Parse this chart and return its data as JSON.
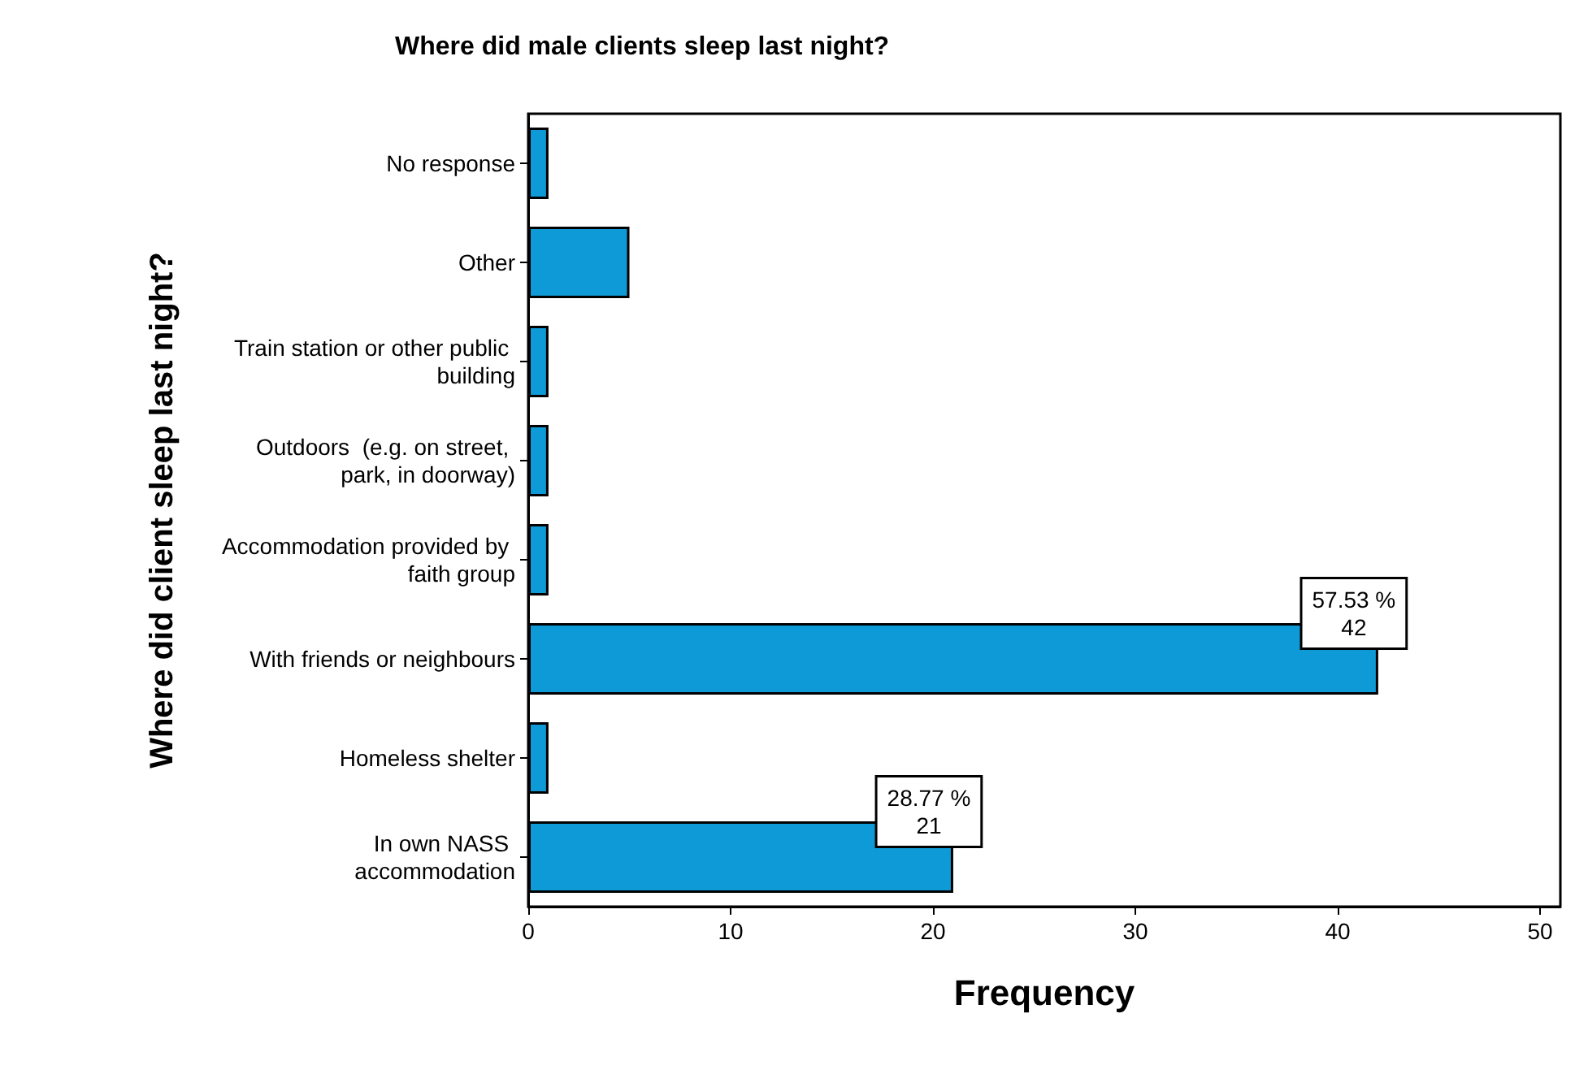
{
  "chart_data": {
    "type": "bar",
    "orientation": "horizontal",
    "title": "Where did male clients sleep last night?",
    "xlabel": "Frequency",
    "ylabel": "Where did client sleep last night?",
    "categories": [
      "No response",
      "Other",
      "Train station or other public building",
      "Outdoors  (e.g. on street, park, in doorway)",
      "Accommodation provided by faith group",
      "With friends or neighbours",
      "Homeless shelter",
      "In own NASS accommodation"
    ],
    "values": [
      1,
      5,
      1,
      1,
      1,
      42,
      1,
      21
    ],
    "value_labels": [
      null,
      null,
      null,
      null,
      null,
      "57.53 %\n42",
      null,
      "28.77 %\n21"
    ],
    "color": "#0e9ad6",
    "xlim": [
      0,
      51
    ],
    "xticks": [
      0,
      10,
      20,
      30,
      40,
      50
    ],
    "grid": false
  }
}
